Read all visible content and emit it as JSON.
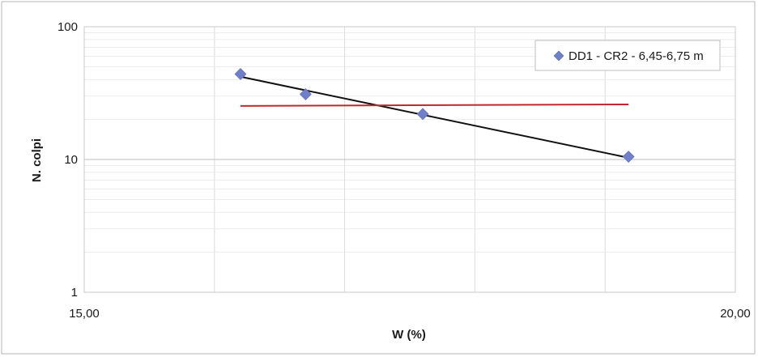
{
  "chart_data": {
    "type": "scatter",
    "xlabel": "W (%)",
    "ylabel": "N. colpi",
    "xlim": [
      15.0,
      20.0
    ],
    "ylim": [
      1,
      100
    ],
    "y_scale": "log",
    "grid": true,
    "legend_position": "top-right",
    "x_tick_labels": [
      {
        "value": 15.0,
        "label": "15,00"
      },
      {
        "value": 20.0,
        "label": "20,00"
      }
    ],
    "y_tick_labels": [
      {
        "value": 1,
        "label": "1"
      },
      {
        "value": 10,
        "label": "10"
      },
      {
        "value": 100,
        "label": "100"
      }
    ],
    "series": [
      {
        "name": "DD1 - CR2 - 6,45-6,75 m",
        "marker": "diamond",
        "color": "#7080c8",
        "points": [
          {
            "x": 16.2,
            "y": 44
          },
          {
            "x": 16.7,
            "y": 31
          },
          {
            "x": 17.6,
            "y": 22
          },
          {
            "x": 19.18,
            "y": 10.5
          }
        ]
      }
    ],
    "lines": [
      {
        "role": "trend",
        "color": "#111111",
        "points": [
          {
            "x": 16.2,
            "y": 42
          },
          {
            "x": 19.18,
            "y": 10.3
          }
        ]
      },
      {
        "role": "reference",
        "color": "#c0282d",
        "points": [
          {
            "x": 16.2,
            "y": 25.3
          },
          {
            "x": 19.18,
            "y": 26.0
          }
        ]
      }
    ]
  }
}
